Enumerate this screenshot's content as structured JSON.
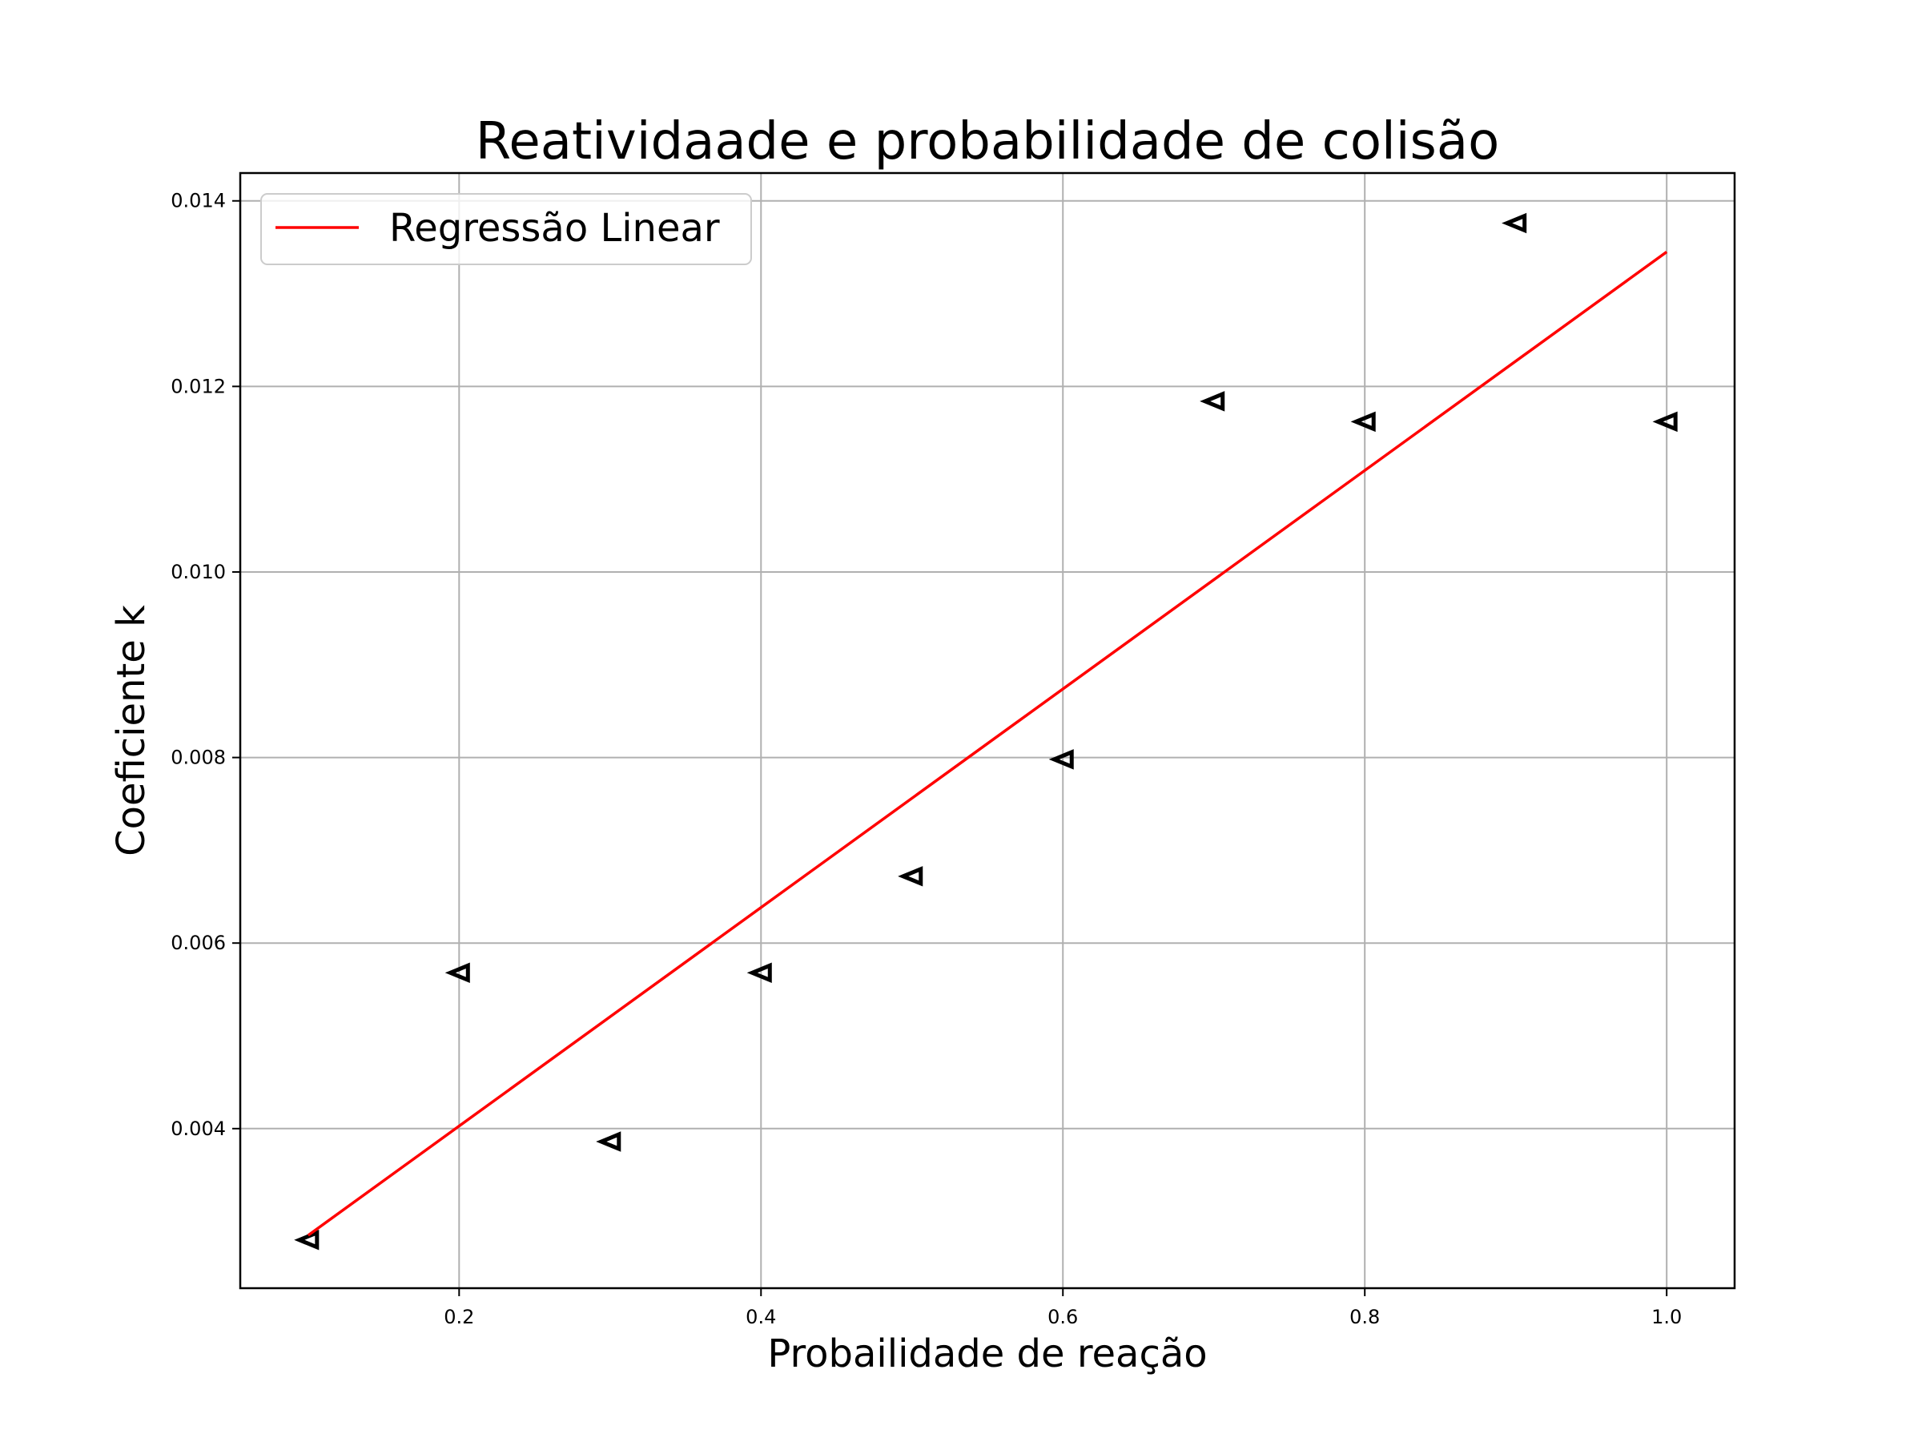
{
  "chart_data": {
    "type": "scatter",
    "title": "Reatividaade e probabilidade de colisão",
    "xlabel": "Probailidade de reação",
    "ylabel": "Coeficiente k",
    "xlim": [
      0.055,
      1.045
    ],
    "ylim": [
      0.00228,
      0.0143
    ],
    "xticks": [
      0.2,
      0.4,
      0.6,
      0.8,
      1.0
    ],
    "xtick_labels": [
      "0.2",
      "0.4",
      "0.6",
      "0.8",
      "1.0"
    ],
    "yticks": [
      0.004,
      0.006,
      0.008,
      0.01,
      0.012,
      0.014
    ],
    "ytick_labels": [
      "0.004",
      "0.006",
      "0.008",
      "0.010",
      "0.012",
      "0.014"
    ],
    "grid": true,
    "legend_position": "top-left",
    "series": [
      {
        "kind": "scatter",
        "marker": "triangle-left",
        "color": "#000000",
        "x": [
          0.1,
          0.2,
          0.3,
          0.4,
          0.5,
          0.6,
          0.7,
          0.8,
          0.9,
          1.0
        ],
        "y": [
          0.0028,
          0.00568,
          0.00386,
          0.00568,
          0.00672,
          0.00798,
          0.01184,
          0.01162,
          0.01376,
          0.01162
        ]
      },
      {
        "name": "Regressão Linear",
        "kind": "line",
        "color": "#ff0000",
        "x": [
          0.1,
          1.0
        ],
        "y": [
          0.00285,
          0.01345
        ]
      }
    ]
  }
}
